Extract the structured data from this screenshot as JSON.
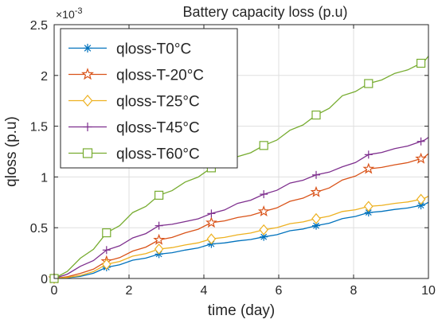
{
  "chart_data": {
    "type": "line",
    "title": "Battery capacity loss (p.u)",
    "xlabel": "time (day)",
    "ylabel": "qloss (p.u)",
    "xlim": [
      0,
      10
    ],
    "ylim": [
      0,
      2.5
    ],
    "y_multiplier": "×10",
    "y_multiplier_exponent": "-3",
    "x_ticks": [
      "0",
      "2",
      "4",
      "6",
      "8",
      "10"
    ],
    "y_ticks": [
      "0",
      "0.5",
      "1",
      "1.5",
      "2",
      "2.5"
    ],
    "grid": true,
    "legend_position": "top-left",
    "series": [
      {
        "name": "qloss-T0°C",
        "color": "#0072BD",
        "marker": "asterisk",
        "x": [
          0,
          0.7,
          1.4,
          2.1,
          2.8,
          3.5,
          4.2,
          4.9,
          5.6,
          6.3,
          7.0,
          7.7,
          8.4,
          9.1,
          9.8,
          10
        ],
        "y": [
          0,
          0.02,
          0.11,
          0.18,
          0.24,
          0.28,
          0.34,
          0.37,
          0.41,
          0.47,
          0.52,
          0.59,
          0.65,
          0.68,
          0.72,
          0.75
        ],
        "marker_x": [
          0,
          1.4,
          2.8,
          4.2,
          5.6,
          7.0,
          8.4,
          9.8
        ],
        "marker_y": [
          0,
          0.11,
          0.24,
          0.34,
          0.41,
          0.52,
          0.65,
          0.72
        ]
      },
      {
        "name": "qloss-T-20°C",
        "color": "#D95319",
        "marker": "pentagram",
        "x": [
          0,
          0.7,
          1.4,
          2.1,
          2.8,
          3.5,
          4.2,
          4.9,
          5.6,
          6.3,
          7.0,
          7.7,
          8.4,
          9.1,
          9.8,
          10
        ],
        "y": [
          0,
          0.05,
          0.17,
          0.27,
          0.38,
          0.45,
          0.55,
          0.6,
          0.66,
          0.76,
          0.85,
          0.97,
          1.08,
          1.12,
          1.18,
          1.23
        ],
        "marker_x": [
          0,
          1.4,
          2.8,
          4.2,
          5.6,
          7.0,
          8.4,
          9.8
        ],
        "marker_y": [
          0,
          0.17,
          0.38,
          0.55,
          0.66,
          0.85,
          1.08,
          1.18
        ]
      },
      {
        "name": "qloss-T25°C",
        "color": "#EDB120",
        "marker": "diamond",
        "x": [
          0,
          0.7,
          1.4,
          2.1,
          2.8,
          3.5,
          4.2,
          4.9,
          5.6,
          6.3,
          7.0,
          7.7,
          8.4,
          9.1,
          9.8,
          10
        ],
        "y": [
          0,
          0.03,
          0.14,
          0.22,
          0.29,
          0.33,
          0.39,
          0.43,
          0.48,
          0.54,
          0.59,
          0.66,
          0.71,
          0.74,
          0.78,
          0.81
        ],
        "marker_x": [
          0,
          1.4,
          2.8,
          4.2,
          5.6,
          7.0,
          8.4,
          9.8
        ],
        "marker_y": [
          0,
          0.14,
          0.29,
          0.39,
          0.48,
          0.59,
          0.71,
          0.78
        ]
      },
      {
        "name": "qloss-T45°C",
        "color": "#7E2F8E",
        "marker": "plus",
        "x": [
          0,
          0.7,
          1.4,
          2.1,
          2.8,
          3.5,
          4.2,
          4.9,
          5.6,
          6.3,
          7.0,
          7.7,
          8.4,
          9.1,
          9.8,
          10
        ],
        "y": [
          0,
          0.12,
          0.28,
          0.4,
          0.52,
          0.56,
          0.64,
          0.74,
          0.83,
          0.94,
          1.02,
          1.1,
          1.22,
          1.28,
          1.35,
          1.39
        ],
        "marker_x": [
          0,
          1.4,
          2.8,
          4.2,
          5.6,
          7.0,
          8.4,
          9.8
        ],
        "marker_y": [
          0,
          0.28,
          0.52,
          0.64,
          0.83,
          1.02,
          1.22,
          1.35
        ]
      },
      {
        "name": "qloss-T60°C",
        "color": "#77AC30",
        "marker": "square",
        "x": [
          0,
          0.7,
          1.4,
          2.1,
          2.8,
          3.5,
          4.2,
          4.9,
          5.6,
          6.3,
          7.0,
          7.7,
          8.4,
          9.1,
          9.8,
          10
        ],
        "y": [
          0,
          0.2,
          0.45,
          0.65,
          0.82,
          0.95,
          1.09,
          1.2,
          1.31,
          1.46,
          1.61,
          1.8,
          1.92,
          2.02,
          2.12,
          2.19
        ],
        "marker_x": [
          0,
          1.4,
          2.8,
          4.2,
          5.6,
          7.0,
          8.4,
          9.8
        ],
        "marker_y": [
          0,
          0.45,
          0.82,
          1.09,
          1.31,
          1.61,
          1.92,
          2.12
        ]
      }
    ]
  }
}
